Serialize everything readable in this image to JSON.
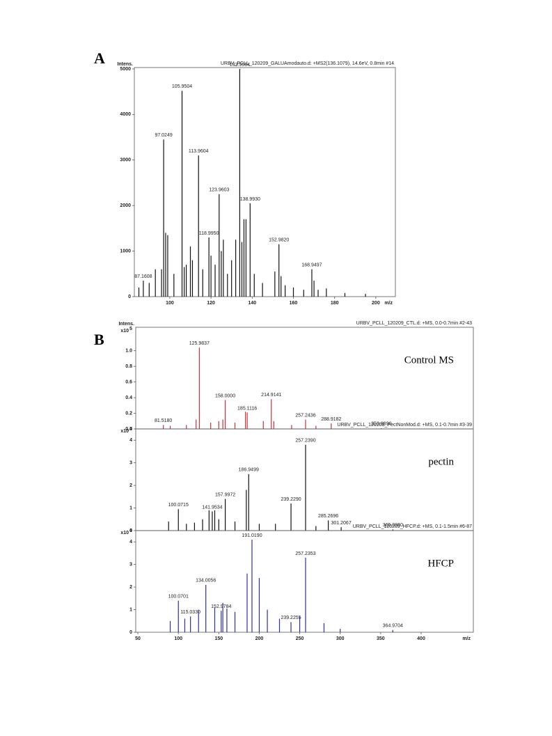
{
  "chart_data": [
    {
      "type": "bar",
      "panel_label": "A",
      "title": "URBV_PCLL_120209_GALUAmodauto.d: +MS2(136.1079), 14.6eV, 0.8min #14",
      "y_label": "Intens.",
      "x_label": "m/z",
      "color": "#111111",
      "xlim": [
        82.8,
        209.5
      ],
      "ylim": [
        0,
        5030
      ],
      "xticks": [
        100,
        120,
        140,
        160,
        180,
        200
      ],
      "yticks": [
        0,
        1000,
        2000,
        3000,
        4000,
        5000
      ],
      "x": [
        85,
        87.1608,
        90,
        93,
        96,
        97.0249,
        98,
        99,
        102,
        105.9504,
        107,
        108,
        110,
        111,
        113.9604,
        116,
        118.995,
        120,
        122,
        123.9603,
        125,
        126,
        128,
        130,
        132,
        133.9564,
        135,
        136,
        137,
        138.993,
        141,
        145,
        151,
        152.982,
        154,
        156,
        160,
        165,
        168.9497,
        170,
        172,
        176,
        185,
        195
      ],
      "values": [
        200,
        350,
        300,
        600,
        600,
        3450,
        1400,
        1350,
        500,
        4520,
        650,
        700,
        1100,
        800,
        3100,
        600,
        1300,
        900,
        700,
        2250,
        1000,
        1250,
        500,
        800,
        1250,
        5000,
        1200,
        1700,
        1700,
        2050,
        500,
        300,
        550,
        1150,
        450,
        250,
        200,
        150,
        600,
        350,
        150,
        180,
        80,
        60
      ],
      "peak_labels": [
        null,
        "87.1608",
        null,
        null,
        null,
        "97.0249",
        null,
        null,
        null,
        "105.9504",
        null,
        null,
        null,
        null,
        "113.9604",
        null,
        "118.9950",
        null,
        null,
        "123.9603",
        null,
        null,
        null,
        null,
        null,
        "133.9564",
        null,
        null,
        null,
        "138.9930",
        null,
        null,
        null,
        "152.9820",
        null,
        null,
        null,
        null,
        "168.9497",
        null,
        null,
        null,
        null,
        null
      ]
    },
    {
      "type": "bar",
      "panel_label": "B",
      "title": "URBV_PCLL_120209_CTL.d: +MS, 0.0-0.7min #2-43",
      "name": "Control MS",
      "y_label": "Intens.",
      "y_scale_label": "x10",
      "y_scale_exponent": "5",
      "color": "#cc2f3a",
      "xlim": [
        47.4,
        464.5
      ],
      "ylim": [
        0,
        1.3
      ],
      "yticks": [
        {
          "value": 0,
          "label": "0.0"
        },
        0.2,
        0.4,
        0.6,
        0.8,
        {
          "value": 1,
          "label": "1.0"
        }
      ],
      "x": [
        81.518,
        90,
        110,
        122,
        125.9837,
        140,
        150,
        155,
        158.0,
        170,
        183,
        185.1116,
        205,
        214.9141,
        218,
        240,
        257.2436,
        270,
        288.9182,
        350.889
      ],
      "values": [
        0.05,
        0.04,
        0.05,
        0.12,
        1.04,
        0.08,
        0.1,
        0.12,
        0.37,
        0.08,
        0.22,
        0.21,
        0.1,
        0.38,
        0.1,
        0.05,
        0.12,
        0.04,
        0.07,
        0.01
      ],
      "peak_labels": [
        "81.5180",
        null,
        null,
        null,
        "125.9837",
        null,
        null,
        null,
        "158.0000",
        null,
        null,
        "185.1116",
        null,
        "214.9141",
        null,
        null,
        "257.2436",
        null,
        "288.9182",
        "350.8890"
      ]
    },
    {
      "type": "bar",
      "title": "URBV_PCLL_120209_PectNonMod.d: +MS, 0.1-0.7min #3-39",
      "name": "pectin",
      "y_scale_label": "x10",
      "y_scale_exponent": "4",
      "color": "#111111",
      "xlim": [
        47.4,
        464.5
      ],
      "ylim": [
        0,
        4.5
      ],
      "yticks": [
        0,
        1,
        2,
        3,
        4
      ],
      "x": [
        88,
        100.0715,
        110,
        120,
        130,
        138,
        141.9534,
        145,
        150,
        157.9972,
        170,
        184,
        186.9499,
        200,
        220,
        239.229,
        257.239,
        270,
        285.2696,
        301.2067,
        365.096
      ],
      "values": [
        0.4,
        0.95,
        0.3,
        0.35,
        0.5,
        0.9,
        0.85,
        0.9,
        0.5,
        1.4,
        0.4,
        1.8,
        2.5,
        0.3,
        0.3,
        1.2,
        3.8,
        0.2,
        0.45,
        0.15,
        0.05
      ],
      "peak_labels": [
        null,
        "100.0715",
        null,
        null,
        null,
        null,
        "141.9534",
        null,
        null,
        "157.9972",
        null,
        null,
        "186.9499",
        null,
        null,
        "239.2290",
        "257.2390",
        null,
        "285.2696",
        "301.2067",
        "365.0960"
      ]
    },
    {
      "type": "bar",
      "title": "URBV_PCLL_120209_HFCP.d: +MS, 0.1-1.5min #6-87",
      "name": "HFCP",
      "y_scale_label": "x10",
      "y_scale_exponent": "4",
      "x_label": "m/z",
      "color": "#2e2ea8",
      "xlim": [
        47.4,
        464.5
      ],
      "ylim": [
        0,
        4.5
      ],
      "yticks": [
        0,
        1,
        2,
        3,
        4
      ],
      "xticks": [
        50,
        100,
        150,
        200,
        250,
        300,
        350,
        400
      ],
      "x": [
        90,
        100.0701,
        108,
        115.033,
        125,
        134.0056,
        145,
        152.9784,
        155,
        160,
        170,
        185,
        191.019,
        200,
        210,
        225,
        239.2255,
        250,
        257.2353,
        280,
        300,
        364.9704
      ],
      "values": [
        0.5,
        1.4,
        0.6,
        0.7,
        1.0,
        2.1,
        1.1,
        0.95,
        1.3,
        1.05,
        0.9,
        2.6,
        4.1,
        2.4,
        1.0,
        0.6,
        0.45,
        0.7,
        3.3,
        0.4,
        0.15,
        0.1
      ],
      "peak_labels": [
        null,
        "100.0701",
        null,
        "115.0330",
        null,
        "134.0056",
        null,
        "152.9784",
        null,
        null,
        null,
        null,
        "191.0190",
        null,
        null,
        null,
        "239.2255",
        null,
        "257.2353",
        null,
        null,
        "364.9704"
      ]
    }
  ]
}
